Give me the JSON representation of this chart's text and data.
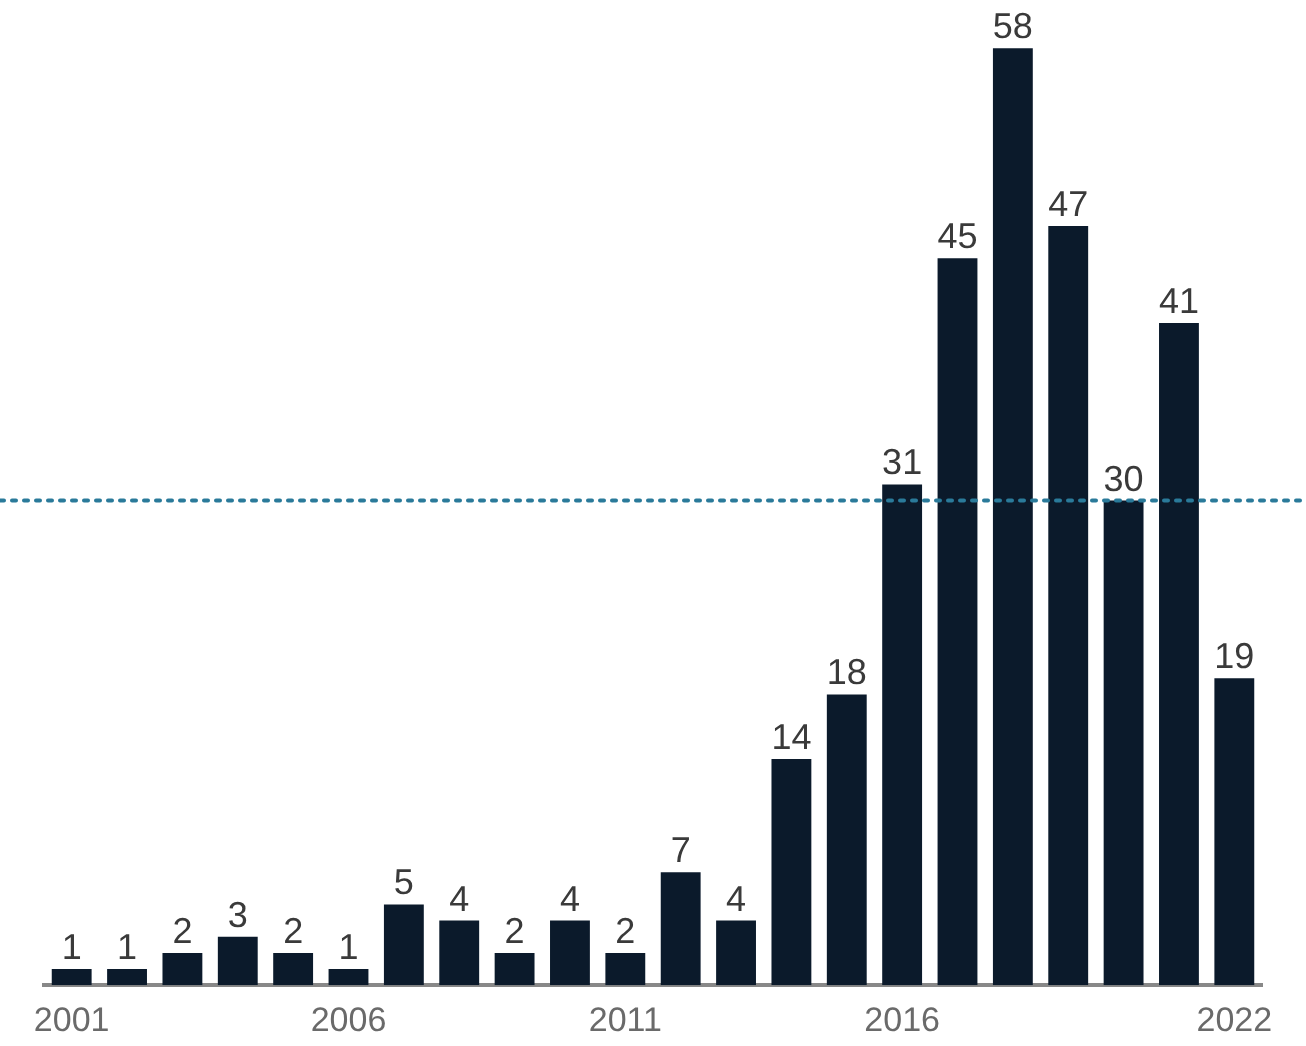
{
  "chart_data": {
    "type": "bar",
    "categories": [
      "2001",
      null,
      null,
      null,
      null,
      "2006",
      null,
      null,
      null,
      null,
      "2011",
      null,
      null,
      null,
      null,
      "2016",
      null,
      null,
      null,
      null,
      null,
      "2022"
    ],
    "values": [
      1,
      1,
      2,
      3,
      2,
      1,
      5,
      4,
      2,
      4,
      2,
      7,
      4,
      14,
      18,
      31,
      45,
      58,
      47,
      30,
      41,
      19
    ],
    "color": "#0b1a2b",
    "data_labels": true,
    "grid": false,
    "legend": false,
    "tick_labels": "x",
    "ref_lines": [
      {
        "axis": "y",
        "value": 30,
        "color": "#2a7a9a",
        "line_style": "dotted"
      }
    ]
  }
}
